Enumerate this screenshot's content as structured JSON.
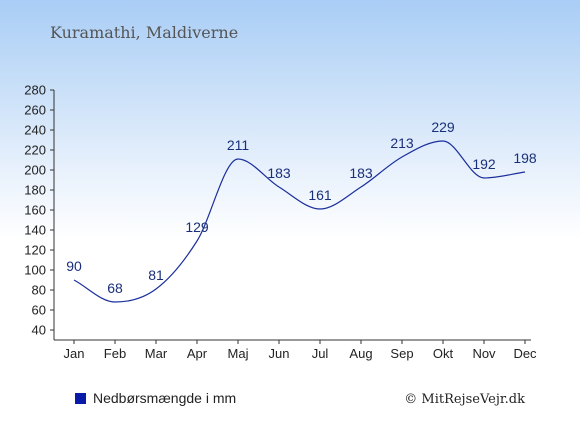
{
  "chart_data": {
    "type": "line",
    "title": "Kuramathi, Maldiverne",
    "categories": [
      "Jan",
      "Feb",
      "Mar",
      "Apr",
      "Maj",
      "Jun",
      "Jul",
      "Aug",
      "Sep",
      "Okt",
      "Nov",
      "Dec"
    ],
    "series": [
      {
        "name": "Nedbørsmængde i mm",
        "values": [
          90,
          68,
          81,
          129,
          211,
          183,
          161,
          183,
          213,
          229,
          192,
          198
        ],
        "color": "#1a2f9c"
      }
    ],
    "ylim": [
      40,
      280
    ],
    "yticks": [
      40,
      60,
      80,
      100,
      120,
      140,
      160,
      180,
      200,
      220,
      240,
      260,
      280
    ],
    "grid": false,
    "legend_position": "bottom-left",
    "legend_marker_color": "#0a1aa8"
  },
  "footer": {
    "legend_label": "Nedbørsmængde i mm",
    "credit": "© MitRejseVejr.dk"
  }
}
